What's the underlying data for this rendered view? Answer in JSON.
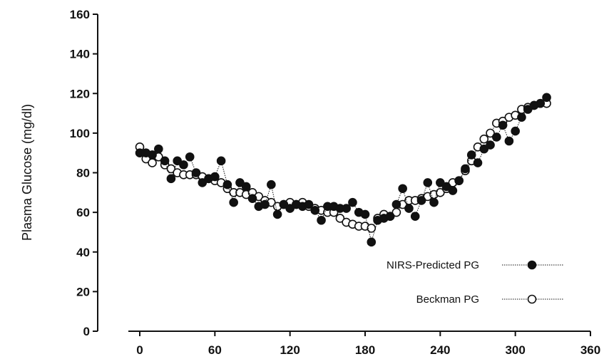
{
  "chart_data": {
    "type": "scatter",
    "title": "",
    "xlabel": "",
    "ylabel": "Plasma Glucose (mg/dl)",
    "xlim": [
      0,
      360
    ],
    "ylim": [
      0,
      160
    ],
    "xticks": [
      "0",
      "60",
      "120",
      "180",
      "240",
      "300",
      "360"
    ],
    "yticks": [
      "0",
      "20",
      "40",
      "60",
      "80",
      "100",
      "120",
      "140",
      "160"
    ],
    "grid": false,
    "legend_position": "lower-right",
    "series": [
      {
        "name": "NIRS-Predicted PG",
        "marker": "filled-circle",
        "line": "dotted",
        "color": "#111111",
        "x": [
          0,
          5,
          10,
          15,
          20,
          25,
          30,
          35,
          40,
          45,
          50,
          55,
          60,
          65,
          70,
          75,
          80,
          85,
          90,
          95,
          100,
          105,
          110,
          115,
          120,
          125,
          130,
          135,
          140,
          145,
          150,
          155,
          160,
          165,
          170,
          175,
          180,
          185,
          190,
          195,
          200,
          205,
          210,
          215,
          220,
          225,
          230,
          235,
          240,
          245,
          250,
          255,
          260,
          265,
          270,
          275,
          280,
          285,
          290,
          295,
          300,
          305,
          310,
          315,
          320,
          325
        ],
        "y": [
          90,
          90,
          89,
          92,
          86,
          77,
          86,
          84,
          88,
          80,
          75,
          77,
          78,
          86,
          74,
          65,
          75,
          73,
          67,
          63,
          64,
          74,
          59,
          64,
          62,
          64,
          63,
          64,
          61,
          56,
          63,
          63,
          62,
          62,
          65,
          60,
          59,
          45,
          56,
          57,
          58,
          64,
          72,
          62,
          58,
          66,
          75,
          65,
          75,
          73,
          71,
          76,
          82,
          89,
          85,
          92,
          94,
          98,
          104,
          96,
          101,
          108,
          112,
          114,
          115,
          118
        ]
      },
      {
        "name": "Beckman PG",
        "marker": "open-circle",
        "line": "dotted",
        "color": "#111111",
        "x": [
          0,
          5,
          10,
          15,
          20,
          25,
          30,
          35,
          40,
          45,
          50,
          55,
          60,
          65,
          70,
          75,
          80,
          85,
          90,
          95,
          100,
          105,
          110,
          115,
          120,
          125,
          130,
          135,
          140,
          145,
          150,
          155,
          160,
          165,
          170,
          175,
          180,
          185,
          190,
          195,
          200,
          205,
          210,
          215,
          220,
          225,
          230,
          235,
          240,
          245,
          250,
          255,
          260,
          265,
          270,
          275,
          280,
          285,
          290,
          295,
          300,
          305,
          310,
          315,
          320,
          325
        ],
        "y": [
          93,
          87,
          85,
          88,
          84,
          82,
          80,
          79,
          79,
          79,
          78,
          77,
          76,
          75,
          72,
          70,
          70,
          69,
          70,
          68,
          66,
          65,
          63,
          64,
          65,
          64,
          65,
          63,
          62,
          61,
          60,
          60,
          57,
          55,
          54,
          53,
          53,
          52,
          57,
          59,
          58,
          60,
          64,
          66,
          66,
          67,
          68,
          69,
          70,
          72,
          75,
          76,
          81,
          86,
          93,
          97,
          100,
          105,
          106,
          108,
          109,
          112,
          113,
          114,
          115,
          115
        ]
      }
    ]
  }
}
